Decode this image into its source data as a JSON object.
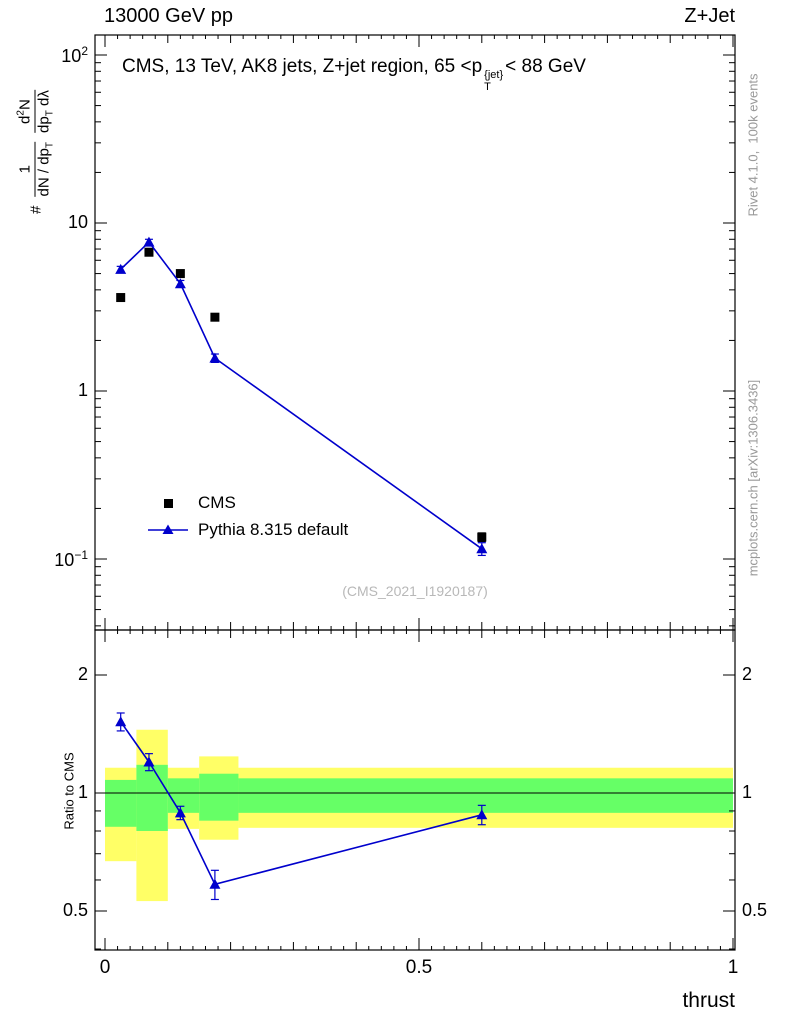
{
  "colors": {
    "yellow": "#ffff66",
    "green": "#66ff66",
    "blue": "#0000cc",
    "black": "#000000",
    "gray_text": "#999999",
    "watermark": "#b8b8b8"
  },
  "header": {
    "left": "13000 GeV pp",
    "right": "Z+Jet"
  },
  "main": {
    "title": {
      "pre": "CMS, 13 TeV, AK8 jets, Z+jet region, 65 <p",
      "sup": "{jet}",
      "sub": "T",
      "post": "< 88 GeV"
    },
    "ylabel": {
      "hash": "#",
      "frac1": {
        "num": "1",
        "den_pre": "dN / dp",
        "den_sub": "T"
      },
      "frac2": {
        "num_pre": "d",
        "num_sup": "2",
        "num_post": "N",
        "den_pre": "dp",
        "den_sub": "T",
        "den_post": " dλ"
      }
    },
    "legend": [
      {
        "label": "CMS",
        "marker": "square",
        "color": "#000000"
      },
      {
        "label": "Pythia 8.315 default",
        "marker": "triangle-line",
        "color": "#0000cc"
      }
    ],
    "watermark": "(CMS_2021_I1920187)"
  },
  "ratio_panel": {
    "ylabel": "Ratio to CMS"
  },
  "xaxis": {
    "label": "thrust"
  },
  "side_text": {
    "top": "Rivet 4.1.0,  100k events",
    "bottom": "mcplots.cern.ch [arXiv:1306.3436]"
  },
  "chart_data": [
    {
      "type": "scatter",
      "panel": "main",
      "title": "CMS, 13 TeV, AK8 jets, Z+jet region, 65 < pT{jet} < 88 GeV",
      "xlabel": "thrust",
      "ylabel": "# 1/(dN/dpT) d2N/(dpT dλ)",
      "xscale": "linear",
      "yscale": "log",
      "xlim": [
        -0.016,
        1.003
      ],
      "ylim": [
        0.037,
        135
      ],
      "grid": false,
      "legend_position": "center-left",
      "x": [
        0.025,
        0.07,
        0.12,
        0.175,
        0.6
      ],
      "series": [
        {
          "name": "CMS",
          "marker": "square",
          "color": "#000000",
          "line": false,
          "y": [
            3.6,
            6.7,
            5.0,
            2.75,
            0.135
          ],
          "yerr": [
            0.12,
            0.2,
            0.15,
            0.09,
            0.008
          ]
        },
        {
          "name": "Pythia 8.315 default",
          "marker": "triangle",
          "color": "#0000cc",
          "line": true,
          "y": [
            5.3,
            7.7,
            4.35,
            1.57,
            0.115
          ],
          "yerr": [
            0.22,
            0.3,
            0.2,
            0.09,
            0.01
          ]
        }
      ],
      "yticks": [
        {
          "v": 100,
          "base": "10",
          "exp": "2"
        },
        {
          "v": 10,
          "base": "10",
          "exp": ""
        },
        {
          "v": 1,
          "base": "1",
          "exp": ""
        },
        {
          "v": 0.1,
          "base": "10",
          "exp": "−1"
        }
      ]
    },
    {
      "type": "ratio",
      "panel": "ratio",
      "ylabel": "Ratio to CMS",
      "yscale": "log",
      "xlim": [
        -0.016,
        1.003
      ],
      "ylim": [
        0.398,
        2.63
      ],
      "ref_line": 1.0,
      "x": [
        0.025,
        0.07,
        0.12,
        0.175,
        0.6
      ],
      "series": [
        {
          "name": "Pythia 8.315 default / CMS",
          "marker": "triangle",
          "color": "#0000cc",
          "line": true,
          "y": [
            1.52,
            1.2,
            0.89,
            0.585,
            0.88
          ],
          "yerr": [
            0.08,
            0.06,
            0.035,
            0.05,
            0.05
          ]
        }
      ],
      "bands": {
        "yellow": [
          {
            "x0": 0.0,
            "x1": 0.05,
            "lo": 0.67,
            "hi": 1.16
          },
          {
            "x0": 0.05,
            "x1": 0.1,
            "lo": 0.53,
            "hi": 1.45
          },
          {
            "x0": 0.1,
            "x1": 0.15,
            "lo": 0.81,
            "hi": 1.16
          },
          {
            "x0": 0.15,
            "x1": 0.2125,
            "lo": 0.76,
            "hi": 1.24
          },
          {
            "x0": 0.2125,
            "x1": 1.0,
            "lo": 0.815,
            "hi": 1.16
          }
        ],
        "green": [
          {
            "x0": 0.0,
            "x1": 0.05,
            "lo": 0.82,
            "hi": 1.08
          },
          {
            "x0": 0.05,
            "x1": 0.1,
            "lo": 0.8,
            "hi": 1.18
          },
          {
            "x0": 0.1,
            "x1": 0.15,
            "lo": 0.89,
            "hi": 1.09
          },
          {
            "x0": 0.15,
            "x1": 0.2125,
            "lo": 0.85,
            "hi": 1.12
          },
          {
            "x0": 0.2125,
            "x1": 1.0,
            "lo": 0.89,
            "hi": 1.09
          }
        ]
      },
      "yticks": [
        {
          "v": 2,
          "label": "2"
        },
        {
          "v": 1,
          "label": "1"
        },
        {
          "v": 0.5,
          "label": "0.5"
        }
      ],
      "xticks": [
        {
          "v": 0,
          "label": "0"
        },
        {
          "v": 0.5,
          "label": "0.5"
        },
        {
          "v": 1,
          "label": "1"
        }
      ]
    }
  ]
}
